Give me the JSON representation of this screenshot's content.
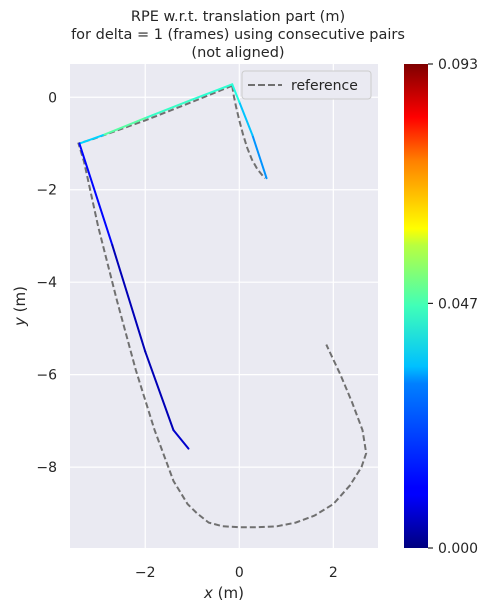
{
  "chart_data": {
    "type": "line",
    "title_lines": [
      "RPE w.r.t. translation part (m)",
      "for delta = 1 (frames) using consecutive pairs",
      "(not aligned)"
    ],
    "xlabel": "$x$ (m)",
    "xlabel_var": "x",
    "xlabel_unit": " (m)",
    "ylabel_var": "y",
    "ylabel_unit": " (m)",
    "xlim": [
      -3.6,
      2.95
    ],
    "ylim": [
      -9.75,
      0.72
    ],
    "xticks": [
      -2,
      0,
      2
    ],
    "yticks": [
      0,
      -2,
      -4,
      -6,
      -8
    ],
    "xtick_labels": [
      "−2",
      "0",
      "2"
    ],
    "ytick_labels": [
      "0",
      "−2",
      "−4",
      "−6",
      "−8"
    ],
    "grid": true,
    "legend_position": "top-right",
    "series": [
      {
        "name": "reference",
        "style": "dashed",
        "color": "#707070",
        "x": [
          -0.15,
          -0.12,
          -0.07,
          0.0,
          0.08,
          0.17,
          0.27,
          0.38,
          0.5,
          0.55
        ],
        "y": [
          0.25,
          0.05,
          -0.2,
          -0.5,
          -0.8,
          -1.1,
          -1.35,
          -1.55,
          -1.7,
          -1.75
        ]
      },
      {
        "name": "reference",
        "style": "dashed",
        "color": "#707070",
        "x": [
          -0.15,
          -1.0,
          -2.0,
          -3.1,
          -3.42,
          -3.3,
          -3.0,
          -2.6,
          -2.2,
          -1.8,
          -1.4,
          -1.1,
          -0.9,
          -0.65,
          -0.35,
          0.0,
          0.4,
          0.8,
          1.2,
          1.6,
          2.0,
          2.35,
          2.6,
          2.7,
          2.62,
          2.4,
          2.15,
          1.85
        ],
        "y": [
          0.25,
          -0.1,
          -0.5,
          -0.9,
          -1.0,
          -1.4,
          -2.8,
          -4.4,
          -5.9,
          -7.2,
          -8.3,
          -8.8,
          -9.0,
          -9.2,
          -9.28,
          -9.3,
          -9.3,
          -9.28,
          -9.2,
          -9.05,
          -8.8,
          -8.4,
          -8.0,
          -7.7,
          -7.2,
          -6.6,
          -6.0,
          -5.35
        ]
      }
    ],
    "trajectory": {
      "x": [
        0.58,
        0.28,
        0.0,
        -0.15,
        -1.0,
        -2.0,
        -2.9,
        -3.4,
        -2.7,
        -2.0,
        -1.4,
        -1.08
      ],
      "y": [
        -1.75,
        -0.82,
        -0.1,
        0.28,
        -0.05,
        -0.45,
        -0.82,
        -1.0,
        -3.2,
        -5.5,
        -7.2,
        -7.6
      ],
      "errors": [
        0.026,
        0.024,
        0.035,
        0.04,
        0.038,
        0.042,
        0.044,
        0.018,
        0.006,
        0.004,
        0.006,
        0.008
      ]
    },
    "colorbar": {
      "colormap": "jet",
      "min": 0.0,
      "max": 0.093,
      "ticks": [
        0.0,
        0.047,
        0.093
      ],
      "tick_labels": [
        "0.000",
        "0.047",
        "0.093"
      ]
    }
  }
}
